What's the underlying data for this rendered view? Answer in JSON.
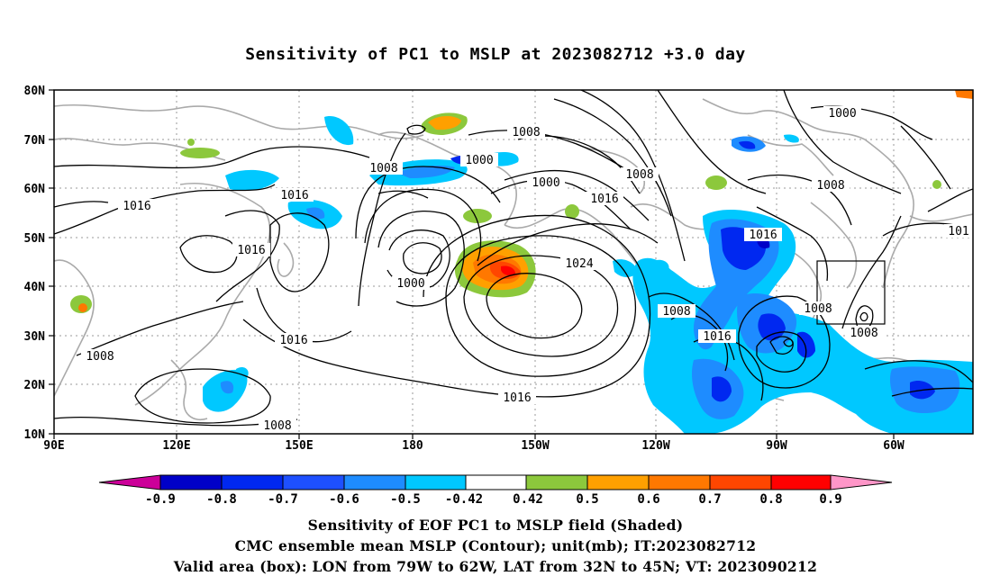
{
  "title": "Sensitivity of PC1 to MSLP at 2023082712 +3.0 day",
  "map": {
    "lon_labels": [
      "90E",
      "120E",
      "150E",
      "180",
      "150W",
      "120W",
      "90W",
      "60W"
    ],
    "lat_labels": [
      "80N",
      "70N",
      "60N",
      "50N",
      "40N",
      "30N",
      "20N",
      "10N"
    ],
    "contour_labels": [
      "1000",
      "1008",
      "1000",
      "1008",
      "1008",
      "1016",
      "1000",
      "1008",
      "1016",
      "1016",
      "1008",
      "1016",
      "1024",
      "1016",
      "1000",
      "1008",
      "1016",
      "1008",
      "1016",
      "1008",
      "1008",
      "1016",
      "1008",
      "1016",
      "1008",
      "101"
    ],
    "colors": {
      "neg_09": "#cc0099",
      "neg_08": "#0000c8",
      "neg_07": "#0028f0",
      "neg_06": "#1e50ff",
      "neg_05": "#1e8cff",
      "neg_042": "#00c8ff",
      "neutral": "#ffffff",
      "pos_042": "#8cc83c",
      "pos_05": "#ffa000",
      "pos_06": "#ff7800",
      "pos_07": "#ff4600",
      "pos_08": "#ff0000",
      "pos_09": "#ff96c8",
      "coast": "#aaaaaa",
      "contour": "#000000"
    }
  },
  "colorbar": {
    "labels": [
      "-0.9",
      "-0.8",
      "-0.7",
      "-0.6",
      "-0.5",
      "-0.42",
      "0.42",
      "0.5",
      "0.6",
      "0.7",
      "0.8",
      "0.9"
    ]
  },
  "footer": {
    "line1": "Sensitivity of EOF PC1 to MSLP field (Shaded)",
    "line2": "CMC ensemble mean MSLP (Contour); unit(mb); IT:2023082712",
    "line3": "Valid area (box): LON from 79W to 62W, LAT from 32N to 45N; VT: 2023090212"
  }
}
